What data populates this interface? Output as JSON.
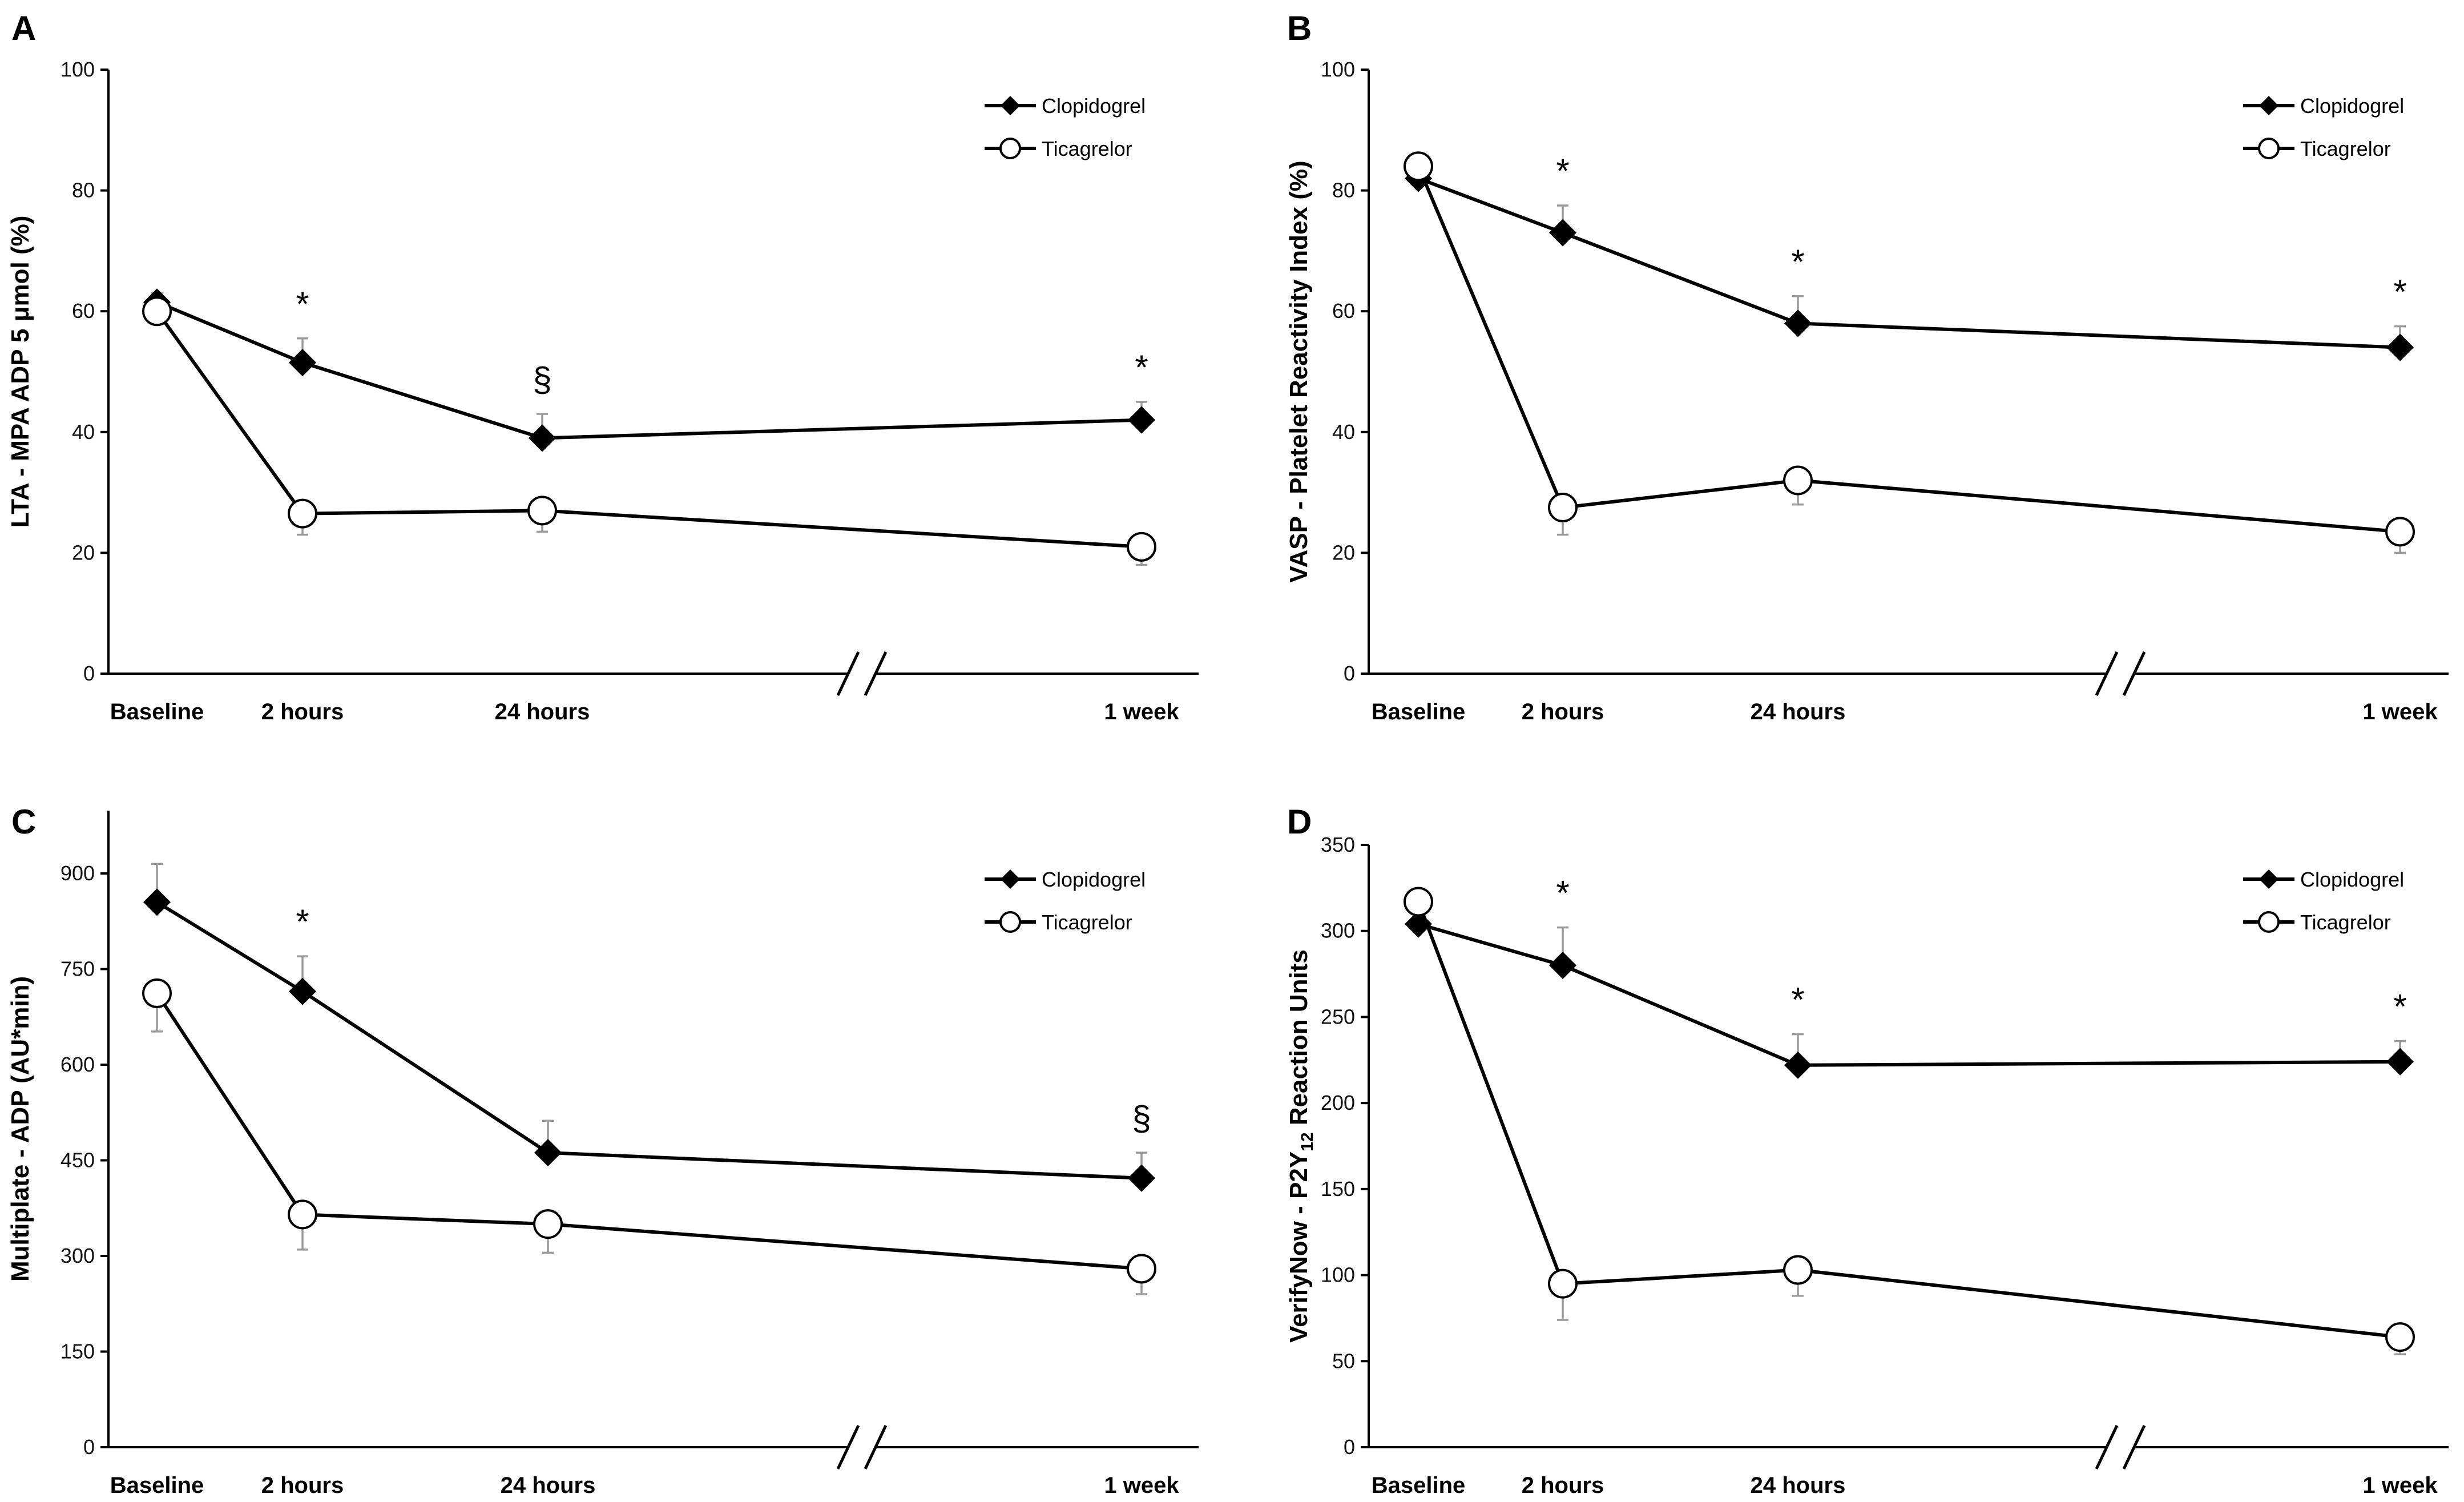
{
  "chart_data": [
    {
      "panel": "A",
      "type": "line",
      "categories": [
        "Baseline",
        "2 hours",
        "24 hours",
        "1 week"
      ],
      "ylabel": "LTA - MPA ADP 5 μmol (%)",
      "ylim": [
        0,
        100
      ],
      "yticks": [
        "0",
        "20",
        "40",
        "60",
        "80",
        "100"
      ],
      "series": [
        {
          "name": "Clopidogrel",
          "marker": "diamond",
          "values": [
            61.5,
            51.5,
            39,
            42
          ],
          "err": [
            1.5,
            4,
            4,
            3
          ]
        },
        {
          "name": "Ticagrelor",
          "marker": "circle",
          "values": [
            60,
            26.5,
            27,
            21
          ],
          "err": [
            1.5,
            3.5,
            3.5,
            3
          ]
        }
      ],
      "annotations": [
        {
          "category": "2 hours",
          "text": "*"
        },
        {
          "category": "24 hours",
          "text": "§"
        },
        {
          "category": "1 week",
          "text": "*"
        }
      ],
      "legend": "top-right"
    },
    {
      "panel": "B",
      "type": "line",
      "categories": [
        "Baseline",
        "2 hours",
        "24 hours",
        "1 week"
      ],
      "ylabel": "VASP - Platelet Reactivity Index (%)",
      "ylim": [
        0,
        100
      ],
      "yticks": [
        "0",
        "20",
        "40",
        "60",
        "80",
        "100"
      ],
      "series": [
        {
          "name": "Clopidogrel",
          "marker": "diamond",
          "values": [
            82,
            73,
            58,
            54
          ],
          "err": [
            1.5,
            4.5,
            4.5,
            3.5
          ]
        },
        {
          "name": "Ticagrelor",
          "marker": "circle",
          "values": [
            84,
            27.5,
            32,
            23.5
          ],
          "err": [
            1.5,
            4.5,
            4,
            3.5
          ]
        }
      ],
      "annotations": [
        {
          "category": "2 hours",
          "text": "*"
        },
        {
          "category": "24 hours",
          "text": "*"
        },
        {
          "category": "1 week",
          "text": "*"
        }
      ],
      "legend": "top-right"
    },
    {
      "panel": "C",
      "type": "line",
      "categories": [
        "Baseline",
        "2 hours",
        "24 hours",
        "1 week"
      ],
      "ylabel": "Multiplate - ADP (AU*min)",
      "ylim": [
        0,
        950
      ],
      "yticks": [
        "0",
        "150",
        "300",
        "450",
        "600",
        "750",
        "900"
      ],
      "series": [
        {
          "name": "Clopidogrel",
          "marker": "diamond",
          "values": [
            855,
            715,
            462,
            422
          ],
          "err": [
            60,
            55,
            50,
            40
          ]
        },
        {
          "name": "Ticagrelor",
          "marker": "circle",
          "values": [
            712,
            365,
            350,
            280
          ],
          "err": [
            60,
            55,
            45,
            40
          ]
        }
      ],
      "annotations": [
        {
          "category": "2 hours",
          "text": "*"
        },
        {
          "category": "1 week",
          "text": "§"
        }
      ],
      "legend": "top-right"
    },
    {
      "panel": "D",
      "type": "line",
      "categories": [
        "Baseline",
        "2 hours",
        "24 hours",
        "1 week"
      ],
      "ylabel": "VerifyNow - P2Y",
      "ylabel_sub": "12",
      "ylabel_tail": " Reaction Units",
      "ylim": [
        0,
        350
      ],
      "yticks": [
        "0",
        "50",
        "100",
        "150",
        "200",
        "250",
        "300",
        "350"
      ],
      "series": [
        {
          "name": "Clopidogrel",
          "marker": "diamond",
          "values": [
            304,
            280,
            222,
            224
          ],
          "err": [
            5,
            22,
            18,
            12
          ]
        },
        {
          "name": "Ticagrelor",
          "marker": "circle",
          "values": [
            317,
            95,
            103,
            64
          ],
          "err": [
            5,
            21,
            15,
            10
          ]
        }
      ],
      "annotations": [
        {
          "category": "2 hours",
          "text": "*"
        },
        {
          "category": "24 hours",
          "text": "*"
        },
        {
          "category": "1 week",
          "text": "*"
        }
      ],
      "legend": "top-right"
    }
  ]
}
